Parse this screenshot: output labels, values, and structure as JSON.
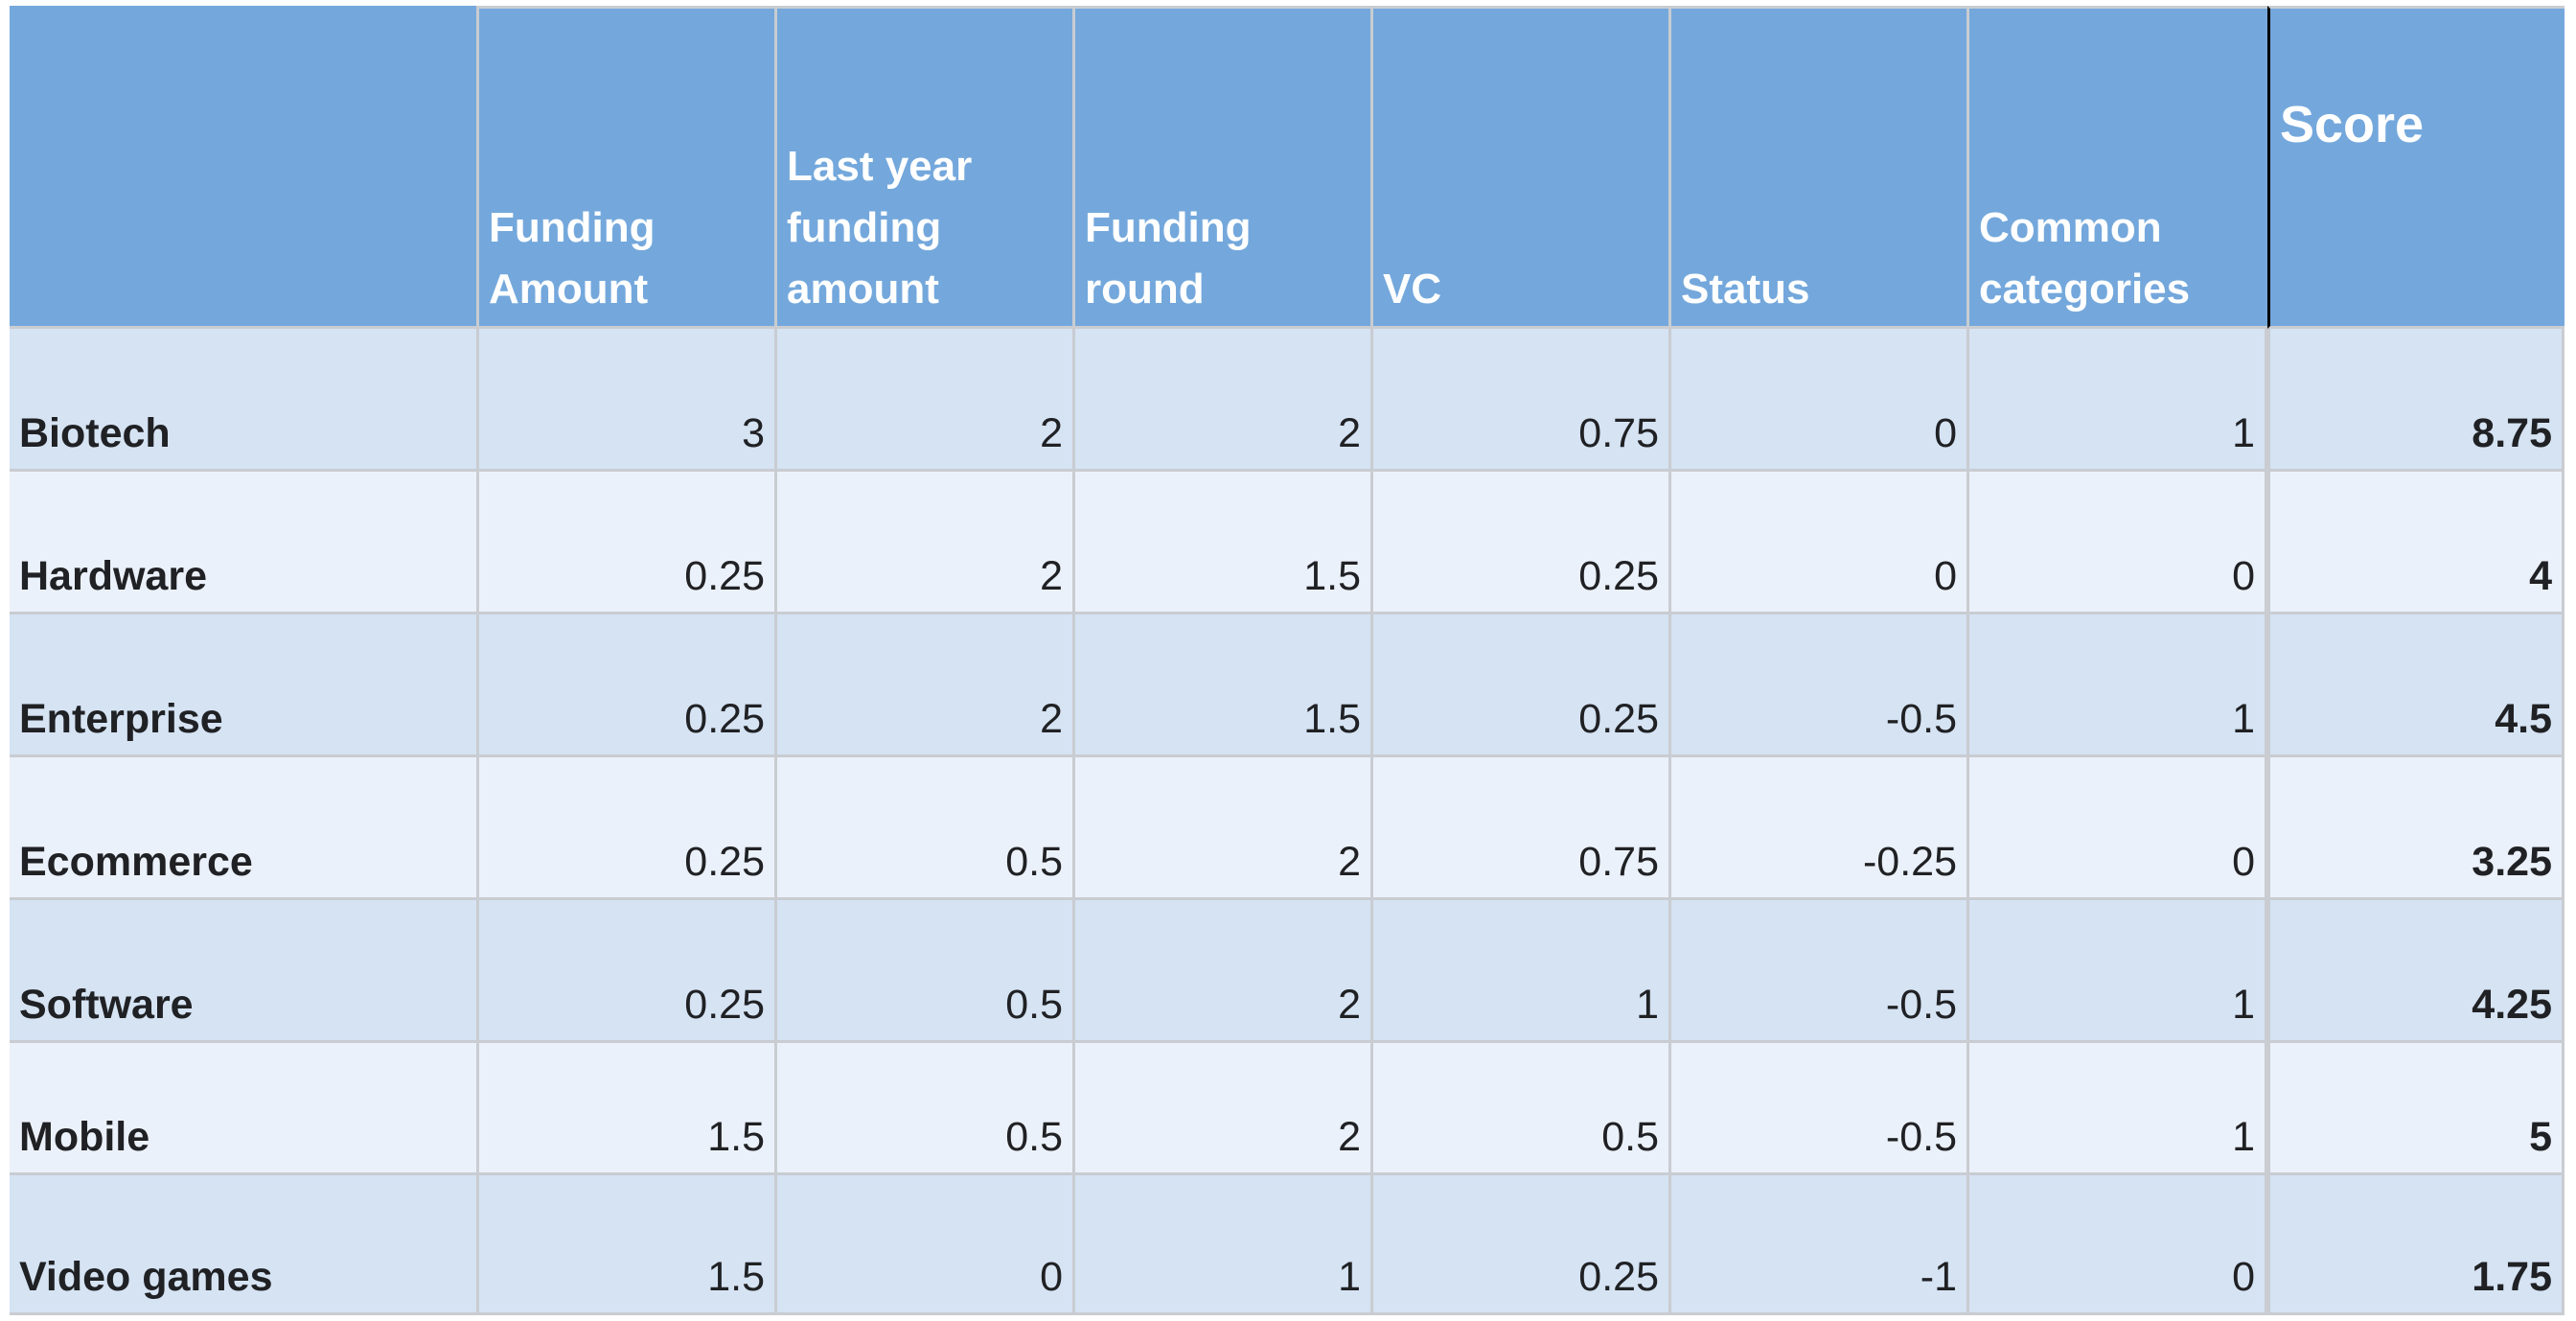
{
  "headers": {
    "corner": "",
    "funding_amount": "Funding\nAmount",
    "last_year_funding_amount": "Last year\nfunding\namount",
    "funding_round": "Funding\nround",
    "vc": "VC",
    "status": "Status",
    "common_categories": "Common\ncategories",
    "score": "Score"
  },
  "rows": [
    {
      "category": "Biotech",
      "funding_amount": "3",
      "last_year_funding_amount": "2",
      "funding_round": "2",
      "vc": "0.75",
      "status": "0",
      "common_categories": "1",
      "score": "8.75"
    },
    {
      "category": "Hardware",
      "funding_amount": "0.25",
      "last_year_funding_amount": "2",
      "funding_round": "1.5",
      "vc": "0.25",
      "status": "0",
      "common_categories": "0",
      "score": "4"
    },
    {
      "category": "Enterprise",
      "funding_amount": "0.25",
      "last_year_funding_amount": "2",
      "funding_round": "1.5",
      "vc": "0.25",
      "status": "-0.5",
      "common_categories": "1",
      "score": "4.5"
    },
    {
      "category": "Ecommerce",
      "funding_amount": "0.25",
      "last_year_funding_amount": "0.5",
      "funding_round": "2",
      "vc": "0.75",
      "status": "-0.25",
      "common_categories": "0",
      "score": "3.25"
    },
    {
      "category": "Software",
      "funding_amount": "0.25",
      "last_year_funding_amount": "0.5",
      "funding_round": "2",
      "vc": "1",
      "status": "-0.5",
      "common_categories": "1",
      "score": "4.25"
    },
    {
      "category": "Mobile",
      "funding_amount": "1.5",
      "last_year_funding_amount": "0.5",
      "funding_round": "2",
      "vc": "0.5",
      "status": "-0.5",
      "common_categories": "1",
      "score": "5"
    },
    {
      "category": "Video games",
      "funding_amount": "1.5",
      "last_year_funding_amount": "0",
      "funding_round": "1",
      "vc": "0.25",
      "status": "-1",
      "common_categories": "0",
      "score": "1.75"
    }
  ],
  "colors": {
    "header_bg": "#74a8dc",
    "row_even": "#d5e3f3",
    "row_odd": "#ebf1fa",
    "grid": "#c9ccd1"
  }
}
